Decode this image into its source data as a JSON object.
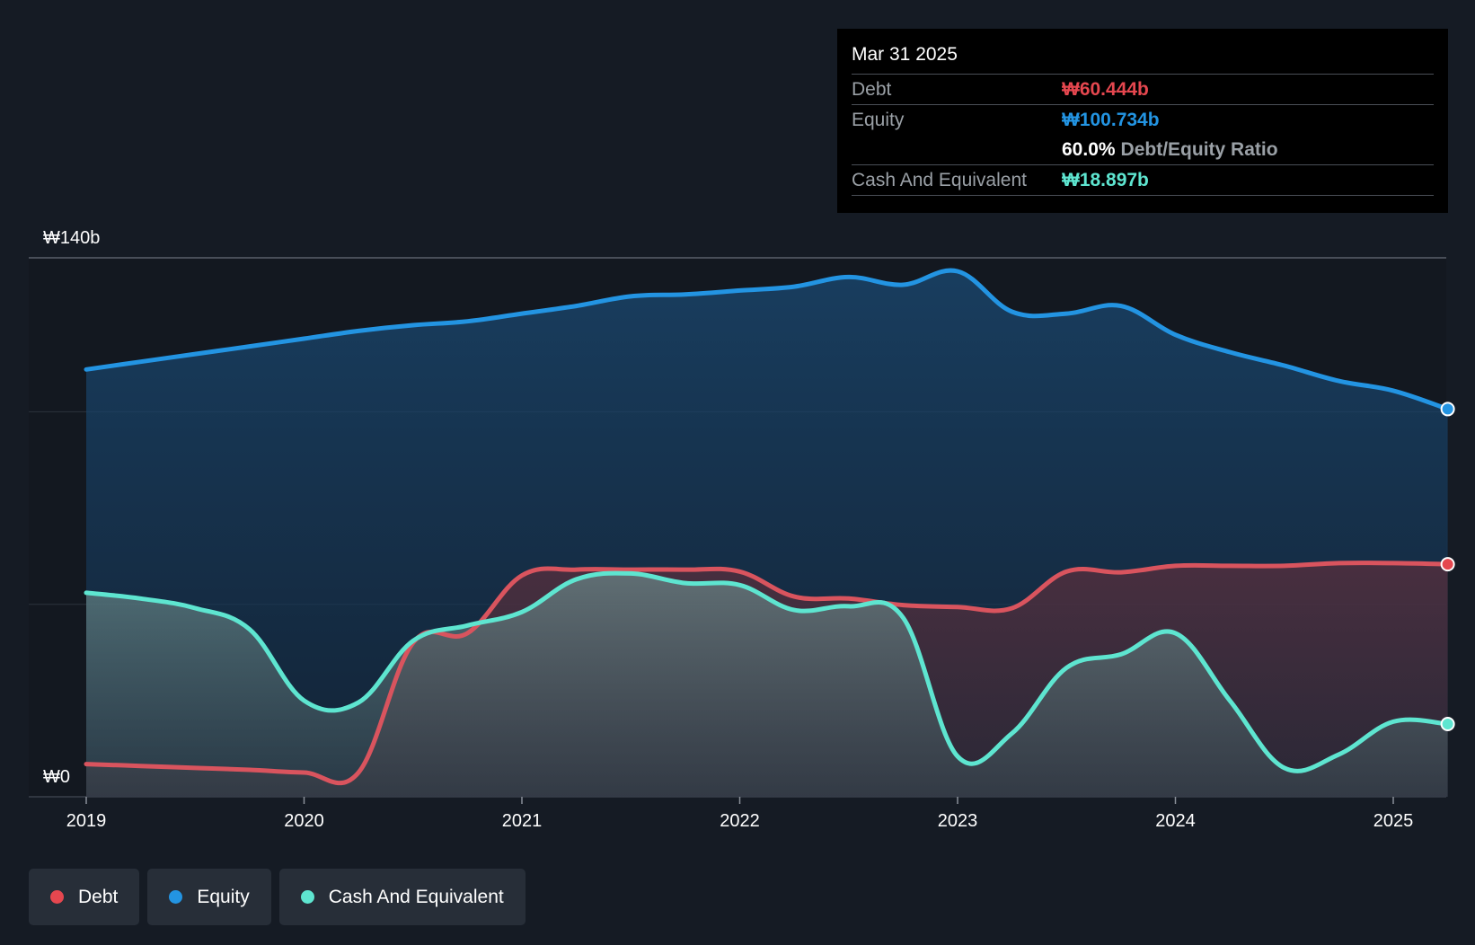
{
  "colors": {
    "background": "#151b24",
    "debt": "#e5474f",
    "equity": "#2394e2",
    "cash": "#5ee5d0",
    "grid": "#3a414b"
  },
  "tooltip": {
    "date": "Mar 31 2025",
    "rows": [
      {
        "label": "Debt",
        "value": "₩60.444b",
        "color": "#e5474f"
      },
      {
        "label": "Equity",
        "value": "₩100.734b",
        "color": "#2394e2"
      },
      {
        "label": "",
        "ratio_value": "60.0%",
        "ratio_text": "Debt/Equity Ratio"
      },
      {
        "label": "Cash And Equivalent",
        "value": "₩18.897b",
        "color": "#5ee5d0"
      }
    ]
  },
  "legend": [
    {
      "label": "Debt",
      "color": "#e5474f",
      "icon": "dot-icon"
    },
    {
      "label": "Equity",
      "color": "#2394e2",
      "icon": "dot-icon"
    },
    {
      "label": "Cash And Equivalent",
      "color": "#5ee5d0",
      "icon": "dot-icon"
    }
  ],
  "chart_data": {
    "type": "area",
    "ylim": [
      0,
      140
    ],
    "xlim": [
      2019.0,
      2025.25
    ],
    "y_tick_labels": [
      {
        "value": 140,
        "label": "₩140b"
      },
      {
        "value": 0,
        "label": "₩0"
      }
    ],
    "gridlines": [
      0,
      50,
      100,
      140
    ],
    "x_ticks": [
      {
        "value": 2019,
        "label": "2019"
      },
      {
        "value": 2020,
        "label": "2020"
      },
      {
        "value": 2021,
        "label": "2021"
      },
      {
        "value": 2022,
        "label": "2022"
      },
      {
        "value": 2023,
        "label": "2023"
      },
      {
        "value": 2024,
        "label": "2024"
      },
      {
        "value": 2025,
        "label": "2025"
      }
    ],
    "series": [
      {
        "name": "Equity",
        "color": "#2394e2",
        "x": [
          2019.0,
          2019.25,
          2019.5,
          2019.75,
          2020.0,
          2020.25,
          2020.5,
          2020.75,
          2021.0,
          2021.25,
          2021.5,
          2021.75,
          2022.0,
          2022.25,
          2022.5,
          2022.75,
          2023.0,
          2023.25,
          2023.5,
          2023.75,
          2024.0,
          2024.25,
          2024.5,
          2024.75,
          2025.0,
          2025.25
        ],
        "y": [
          111,
          113,
          115,
          117,
          119,
          121,
          122.5,
          123.5,
          125.5,
          127.5,
          130,
          130.5,
          131.5,
          132.5,
          135,
          133,
          136.5,
          126,
          125.5,
          127.5,
          120,
          115.5,
          112,
          108,
          105.5,
          100.7
        ]
      },
      {
        "name": "Debt",
        "color": "#e5474f",
        "x": [
          2019.0,
          2019.25,
          2019.5,
          2019.75,
          2020.0,
          2020.25,
          2020.5,
          2020.75,
          2021.0,
          2021.25,
          2021.5,
          2021.75,
          2022.0,
          2022.25,
          2022.5,
          2022.75,
          2023.0,
          2023.25,
          2023.5,
          2023.75,
          2024.0,
          2024.25,
          2024.5,
          2024.75,
          2025.0,
          2025.25
        ],
        "y": [
          8.5,
          8,
          7.5,
          7,
          6.3,
          6.3,
          40,
          42.5,
          57.5,
          59,
          59,
          59,
          58.5,
          52,
          51.5,
          49.8,
          49.3,
          49,
          58.5,
          58.3,
          60,
          60,
          60,
          60.7,
          60.7,
          60.4
        ]
      },
      {
        "name": "Cash And Equivalent",
        "color": "#5ee5d0",
        "x": [
          2019.0,
          2019.25,
          2019.5,
          2019.75,
          2020.0,
          2020.25,
          2020.5,
          2020.75,
          2021.0,
          2021.25,
          2021.5,
          2021.75,
          2022.0,
          2022.25,
          2022.5,
          2022.75,
          2023.0,
          2023.25,
          2023.5,
          2023.75,
          2024.0,
          2024.25,
          2024.5,
          2024.75,
          2025.0,
          2025.25
        ],
        "y": [
          53,
          51.5,
          49,
          43.5,
          25,
          24.5,
          40.5,
          44.5,
          48,
          56.5,
          58,
          55.5,
          55,
          48.5,
          49.5,
          46.5,
          10.5,
          16.5,
          33.5,
          37,
          42.5,
          25,
          7.5,
          11,
          19.5,
          18.9
        ]
      }
    ]
  }
}
